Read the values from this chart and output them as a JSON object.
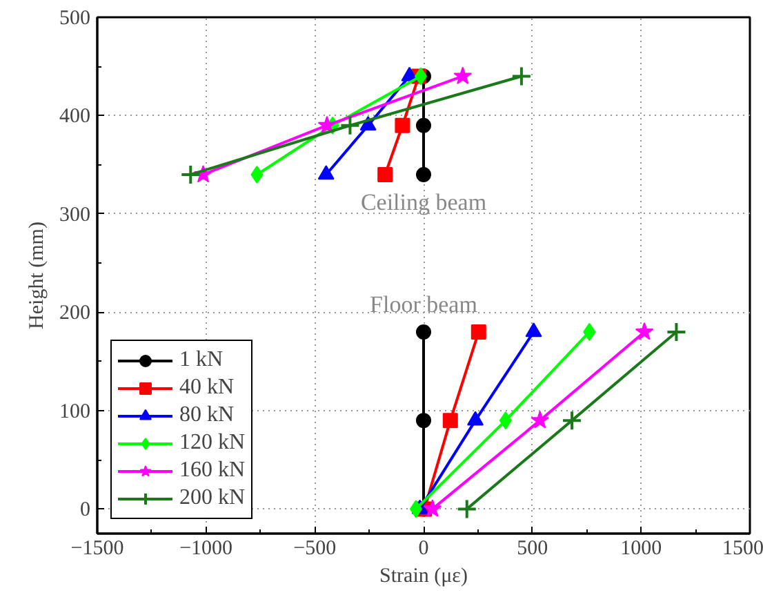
{
  "chart_data": {
    "type": "line",
    "xlabel": "Strain (με)",
    "ylabel": "Height (mm)",
    "xlim": [
      -1500,
      1500
    ],
    "xticks": [
      -1500,
      -1000,
      -500,
      0,
      500,
      1000,
      1500
    ],
    "ylim": [
      -25,
      500
    ],
    "yticks": [
      0,
      100,
      200,
      300,
      400,
      500
    ],
    "grid": true,
    "legend": "bottom left",
    "line_style": "solid",
    "series": [
      {
        "name": "1 kN",
        "color": "#000000",
        "marker": "circle",
        "x": [
          0,
          0,
          0,
          null,
          0,
          0,
          0
        ],
        "values": [
          0,
          90,
          180,
          null,
          340,
          390,
          440
        ]
      },
      {
        "name": "40 kN",
        "color": "#ff0000",
        "marker": "square",
        "x": [
          4,
          123,
          253,
          null,
          -177,
          -97,
          -22
        ],
        "values": [
          0,
          90,
          180,
          null,
          340,
          390,
          440
        ]
      },
      {
        "name": "80 kN",
        "color": "#0000ff",
        "marker": "triangle",
        "x": [
          -17,
          238,
          506,
          null,
          -448,
          -255,
          -65
        ],
        "values": [
          0,
          90,
          180,
          null,
          340,
          390,
          440
        ]
      },
      {
        "name": "120 kN",
        "color": "#00ff00",
        "marker": "diamond",
        "x": [
          -35,
          377,
          762,
          null,
          -766,
          -418,
          -13
        ],
        "values": [
          0,
          90,
          180,
          null,
          340,
          390,
          440
        ]
      },
      {
        "name": "160 kN",
        "color": "#ff00ff",
        "marker": "star",
        "x": [
          41,
          535,
          1015,
          null,
          -1013,
          -444,
          180
        ],
        "values": [
          0,
          90,
          180,
          null,
          340,
          390,
          440
        ]
      },
      {
        "name": "200 kN",
        "color": "#1a7a1a",
        "marker": "cross",
        "x": [
          199,
          682,
          1162,
          null,
          -1071,
          -338,
          450
        ],
        "values": [
          0,
          90,
          180,
          null,
          340,
          390,
          440
        ]
      }
    ],
    "annotations": [
      "Ceiling beam",
      "Floor beam"
    ]
  }
}
